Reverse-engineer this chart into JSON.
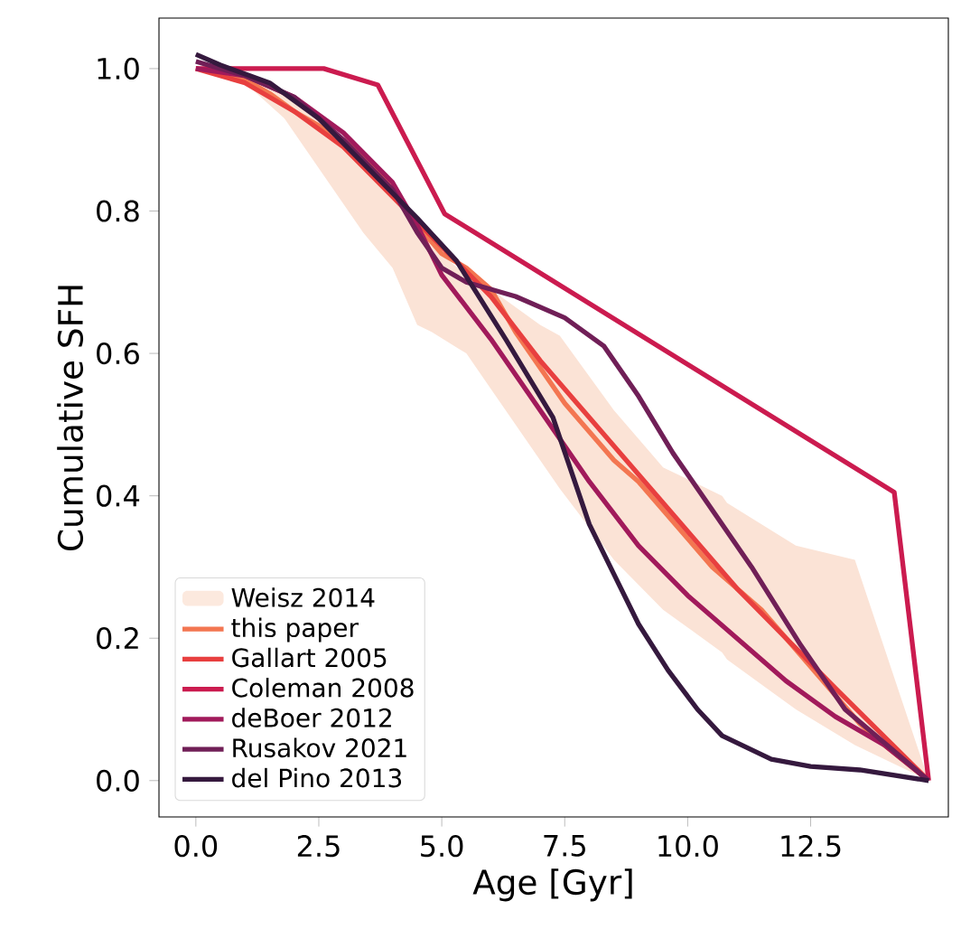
{
  "chart_data": {
    "type": "line",
    "xlabel": "Age [Gyr]",
    "ylabel": "Cumulative SFH",
    "xlim": [
      -0.75,
      15.3
    ],
    "ylim": [
      -0.051,
      1.071
    ],
    "xticks": [
      {
        "value": 0,
        "label": "0.0"
      },
      {
        "value": 2.5,
        "label": "2.5"
      },
      {
        "value": 5,
        "label": "5.0"
      },
      {
        "value": 7.5,
        "label": "7.5"
      },
      {
        "value": 10,
        "label": "10.0"
      },
      {
        "value": 12.5,
        "label": "12.5"
      }
    ],
    "yticks": [
      {
        "value": 0,
        "label": "0.0"
      },
      {
        "value": 0.2,
        "label": "0.2"
      },
      {
        "value": 0.4,
        "label": "0.4"
      },
      {
        "value": 0.6,
        "label": "0.6"
      },
      {
        "value": 0.8,
        "label": "0.8"
      },
      {
        "value": 1,
        "label": "1.0"
      }
    ],
    "legend": "bottom left",
    "grid": false,
    "line_style": "solid",
    "marker": "none",
    "series": [
      {
        "name": "Weisz 2014",
        "type": "area",
        "color": "#fbe3d6",
        "x": [
          0,
          1,
          1.8,
          2.5,
          3.4,
          4,
          4.5,
          4.8,
          5.5,
          6,
          7,
          7.4,
          8.5,
          9.5,
          10.7,
          10.8,
          12.2,
          13.4,
          14.9
        ],
        "values": [
          null,
          null,
          null,
          null,
          null,
          null,
          null,
          null,
          null,
          null,
          null,
          null,
          null,
          null,
          null,
          null,
          null,
          null,
          null
        ],
        "upper": [
          1.0,
          0.99,
          0.965,
          0.93,
          0.88,
          0.84,
          0.78,
          0.75,
          0.71,
          0.69,
          0.64,
          0.625,
          0.52,
          0.44,
          0.4,
          0.39,
          0.33,
          0.31,
          0.0
        ],
        "lower": [
          1.0,
          0.98,
          0.93,
          0.86,
          0.77,
          0.72,
          0.64,
          0.63,
          0.6,
          0.55,
          0.45,
          0.41,
          0.31,
          0.24,
          0.18,
          0.17,
          0.1,
          0.05,
          0.0
        ]
      },
      {
        "name": "this paper",
        "color": "#f37651",
        "x": [
          0,
          0.5,
          1,
          1.5,
          2,
          2.5,
          3,
          3.5,
          4,
          4.5,
          5,
          5.5,
          6,
          6.5,
          7,
          7.5,
          8,
          8.5,
          9,
          9.5,
          10,
          10.5,
          11,
          11.5,
          12,
          12.5,
          13,
          13.5,
          14,
          14.9
        ],
        "values": [
          1.0,
          0.995,
          0.985,
          0.965,
          0.94,
          0.92,
          0.9,
          0.87,
          0.83,
          0.78,
          0.74,
          0.72,
          0.69,
          0.63,
          0.58,
          0.53,
          0.49,
          0.45,
          0.42,
          0.38,
          0.34,
          0.3,
          0.27,
          0.24,
          0.2,
          0.16,
          0.12,
          0.08,
          0.05,
          0.0
        ]
      },
      {
        "name": "Gallart 2005",
        "color": "#e83f3f",
        "x": [
          0,
          1,
          2,
          3,
          4,
          5,
          6,
          7,
          8,
          9,
          10,
          11,
          12,
          13,
          14.9
        ],
        "values": [
          1.0,
          0.98,
          0.94,
          0.89,
          0.82,
          0.75,
          0.68,
          0.59,
          0.51,
          0.43,
          0.35,
          0.27,
          0.2,
          0.13,
          0.0
        ]
      },
      {
        "name": "Coleman 2008",
        "color": "#cb1b4f",
        "x": [
          0,
          2.6,
          3.7,
          5.06,
          14.2,
          14.9
        ],
        "values": [
          1.0,
          1.0,
          0.977,
          0.796,
          0.405,
          0.0
        ]
      },
      {
        "name": "deBoer 2012",
        "color": "#a11a5b",
        "x": [
          0,
          1,
          2,
          3,
          4,
          4.5,
          5,
          6,
          7,
          8,
          9,
          10,
          11,
          12,
          13,
          14,
          14.9
        ],
        "values": [
          1.0,
          0.99,
          0.96,
          0.91,
          0.84,
          0.78,
          0.71,
          0.62,
          0.52,
          0.42,
          0.33,
          0.26,
          0.2,
          0.14,
          0.09,
          0.05,
          0.0
        ]
      },
      {
        "name": "Rusakov 2021",
        "color": "#701f57",
        "x": [
          0,
          1,
          2,
          3,
          4,
          4.5,
          5,
          5.5,
          6.5,
          7.5,
          8.3,
          9,
          9.7,
          10.4,
          11.3,
          12.3,
          13.2,
          14.9
        ],
        "values": [
          1.01,
          0.99,
          0.96,
          0.9,
          0.83,
          0.77,
          0.72,
          0.7,
          0.68,
          0.65,
          0.61,
          0.54,
          0.46,
          0.39,
          0.3,
          0.19,
          0.1,
          0.0
        ]
      },
      {
        "name": "del Pino 2013",
        "color": "#35193e",
        "x": [
          0,
          0.5,
          1.5,
          2.5,
          3.5,
          4.5,
          5.3,
          6.3,
          7.26,
          8,
          8.5,
          9,
          9.6,
          10.2,
          10.7,
          11.7,
          12.5,
          13.5,
          14.9
        ],
        "values": [
          1.02,
          1.005,
          0.98,
          0.93,
          0.86,
          0.79,
          0.73,
          0.62,
          0.51,
          0.36,
          0.29,
          0.22,
          0.155,
          0.1,
          0.063,
          0.03,
          0.02,
          0.015,
          0.0
        ]
      }
    ]
  }
}
